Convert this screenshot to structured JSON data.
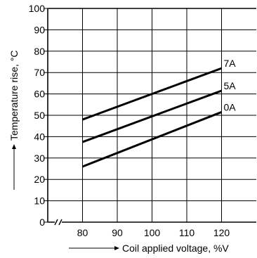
{
  "chart_data": {
    "type": "line",
    "xlabel": "Coil applied voltage, %V",
    "ylabel": "Temperature rise, °C",
    "xlim": [
      70,
      130
    ],
    "ylim": [
      0,
      100
    ],
    "x_ticks": [
      80,
      90,
      100,
      110,
      120
    ],
    "x_tick_labels": [
      "80",
      "90",
      "100",
      "110",
      "120"
    ],
    "y_ticks": [
      0,
      10,
      20,
      30,
      40,
      50,
      60,
      70,
      80,
      90,
      100
    ],
    "y_tick_labels": [
      "0",
      "10",
      "20",
      "30",
      "40",
      "50",
      "60",
      "70",
      "80",
      "90",
      "100"
    ],
    "x_axis_break": true,
    "grid": true,
    "series": [
      {
        "name": "7A",
        "x": [
          80,
          120
        ],
        "y": [
          48,
          72
        ]
      },
      {
        "name": "5A",
        "x": [
          80,
          120
        ],
        "y": [
          37.5,
          61.5
        ]
      },
      {
        "name": "0A",
        "x": [
          80,
          120
        ],
        "y": [
          26,
          51.5
        ]
      }
    ],
    "colors": {
      "line": "#000000",
      "grid": "#000000"
    }
  }
}
